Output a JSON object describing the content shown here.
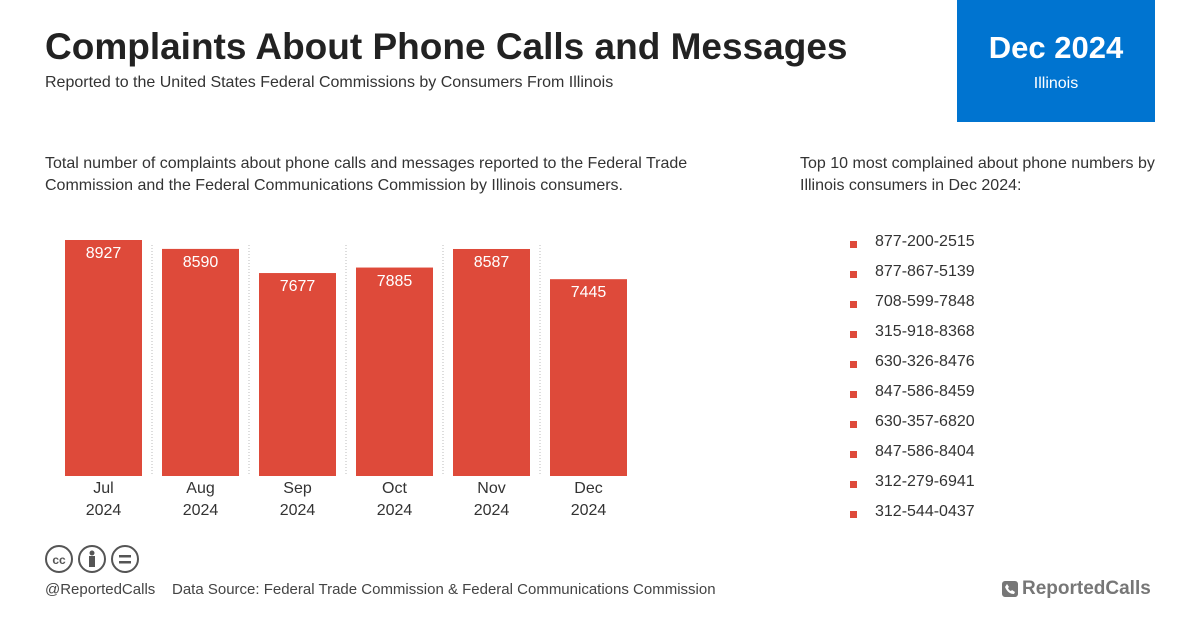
{
  "header": {
    "title": "Complaints About Phone Calls and Messages",
    "subtitle": "Reported to the United States Federal Commissions by Consumers From Illinois"
  },
  "badge": {
    "title": "Dec 2024",
    "subtitle": "Illinois"
  },
  "chart_data": {
    "type": "bar",
    "description": "Total number of complaints about phone calls and messages reported to the Federal Trade Commission and the Federal Communications Commission by Illinois consumers.",
    "categories": [
      "Jul 2024",
      "Aug 2024",
      "Sep 2024",
      "Oct 2024",
      "Nov 2024",
      "Dec 2024"
    ],
    "values": [
      8927,
      8590,
      7677,
      7885,
      8587,
      7445
    ],
    "color": "#de4a3a"
  },
  "list": {
    "title": "Top 10 most complained about phone numbers by Illinois consumers in Dec 2024:",
    "items": [
      "877-200-2515",
      "877-867-5139",
      "708-599-7848",
      "315-918-8368",
      "630-326-8476",
      "847-586-8459",
      "630-357-6820",
      "847-586-8404",
      "312-279-6941",
      "312-544-0437"
    ]
  },
  "footer": {
    "handle": "@ReportedCalls",
    "source": "Data Source: Federal Trade Commission & Federal Communications Commission",
    "brand": "ReportedCalls"
  }
}
